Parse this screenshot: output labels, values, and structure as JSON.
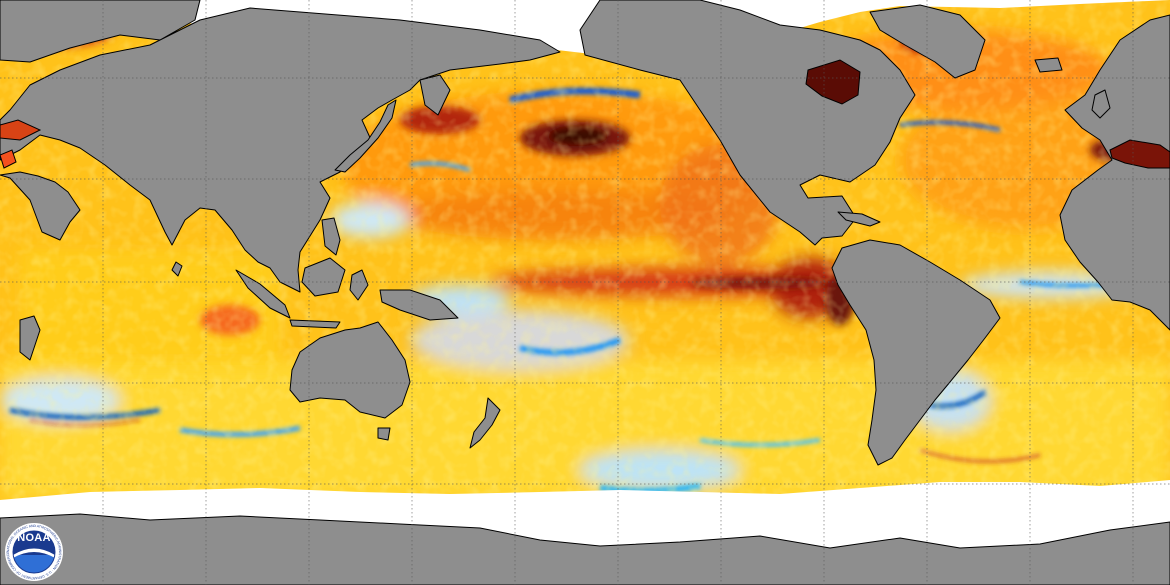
{
  "map": {
    "projection": "equirectangular",
    "view": "sea surface temperature anomaly",
    "center_longitude": "Pacific-centered",
    "land_color": "#8e8e8e",
    "ice_color": "#ffffff",
    "coastline_color": "#000000",
    "gridline_color": "#666666",
    "anomaly_palette": [
      "#1565c0",
      "#29b6f6",
      "#b3e5fc",
      "#e0e0e0",
      "#fff176",
      "#ffd600",
      "#ffb300",
      "#ff8f00",
      "#f4511e",
      "#c62828",
      "#7a1408",
      "#3e0804"
    ],
    "features": [
      "warm anomaly band along the equatorial eastern Pacific",
      "warm anomaly blob in the northeast Pacific",
      "cool anomaly patches in the Southern Ocean",
      "warm anomaly in Hudson Bay",
      "warm anomaly in the Mediterranean"
    ]
  },
  "logo": {
    "wordmark": "NOAA",
    "ring_text": "NATIONAL OCEANIC AND ATMOSPHERIC ADMINISTRATION · U.S. DEPARTMENT OF COMMERCE",
    "colors": {
      "ring": "#ffffff",
      "sky": "#1a3a8f",
      "sea": "#2f6fd6",
      "bird": "#ffffff"
    },
    "icon": "noaa-seagull-logo"
  }
}
